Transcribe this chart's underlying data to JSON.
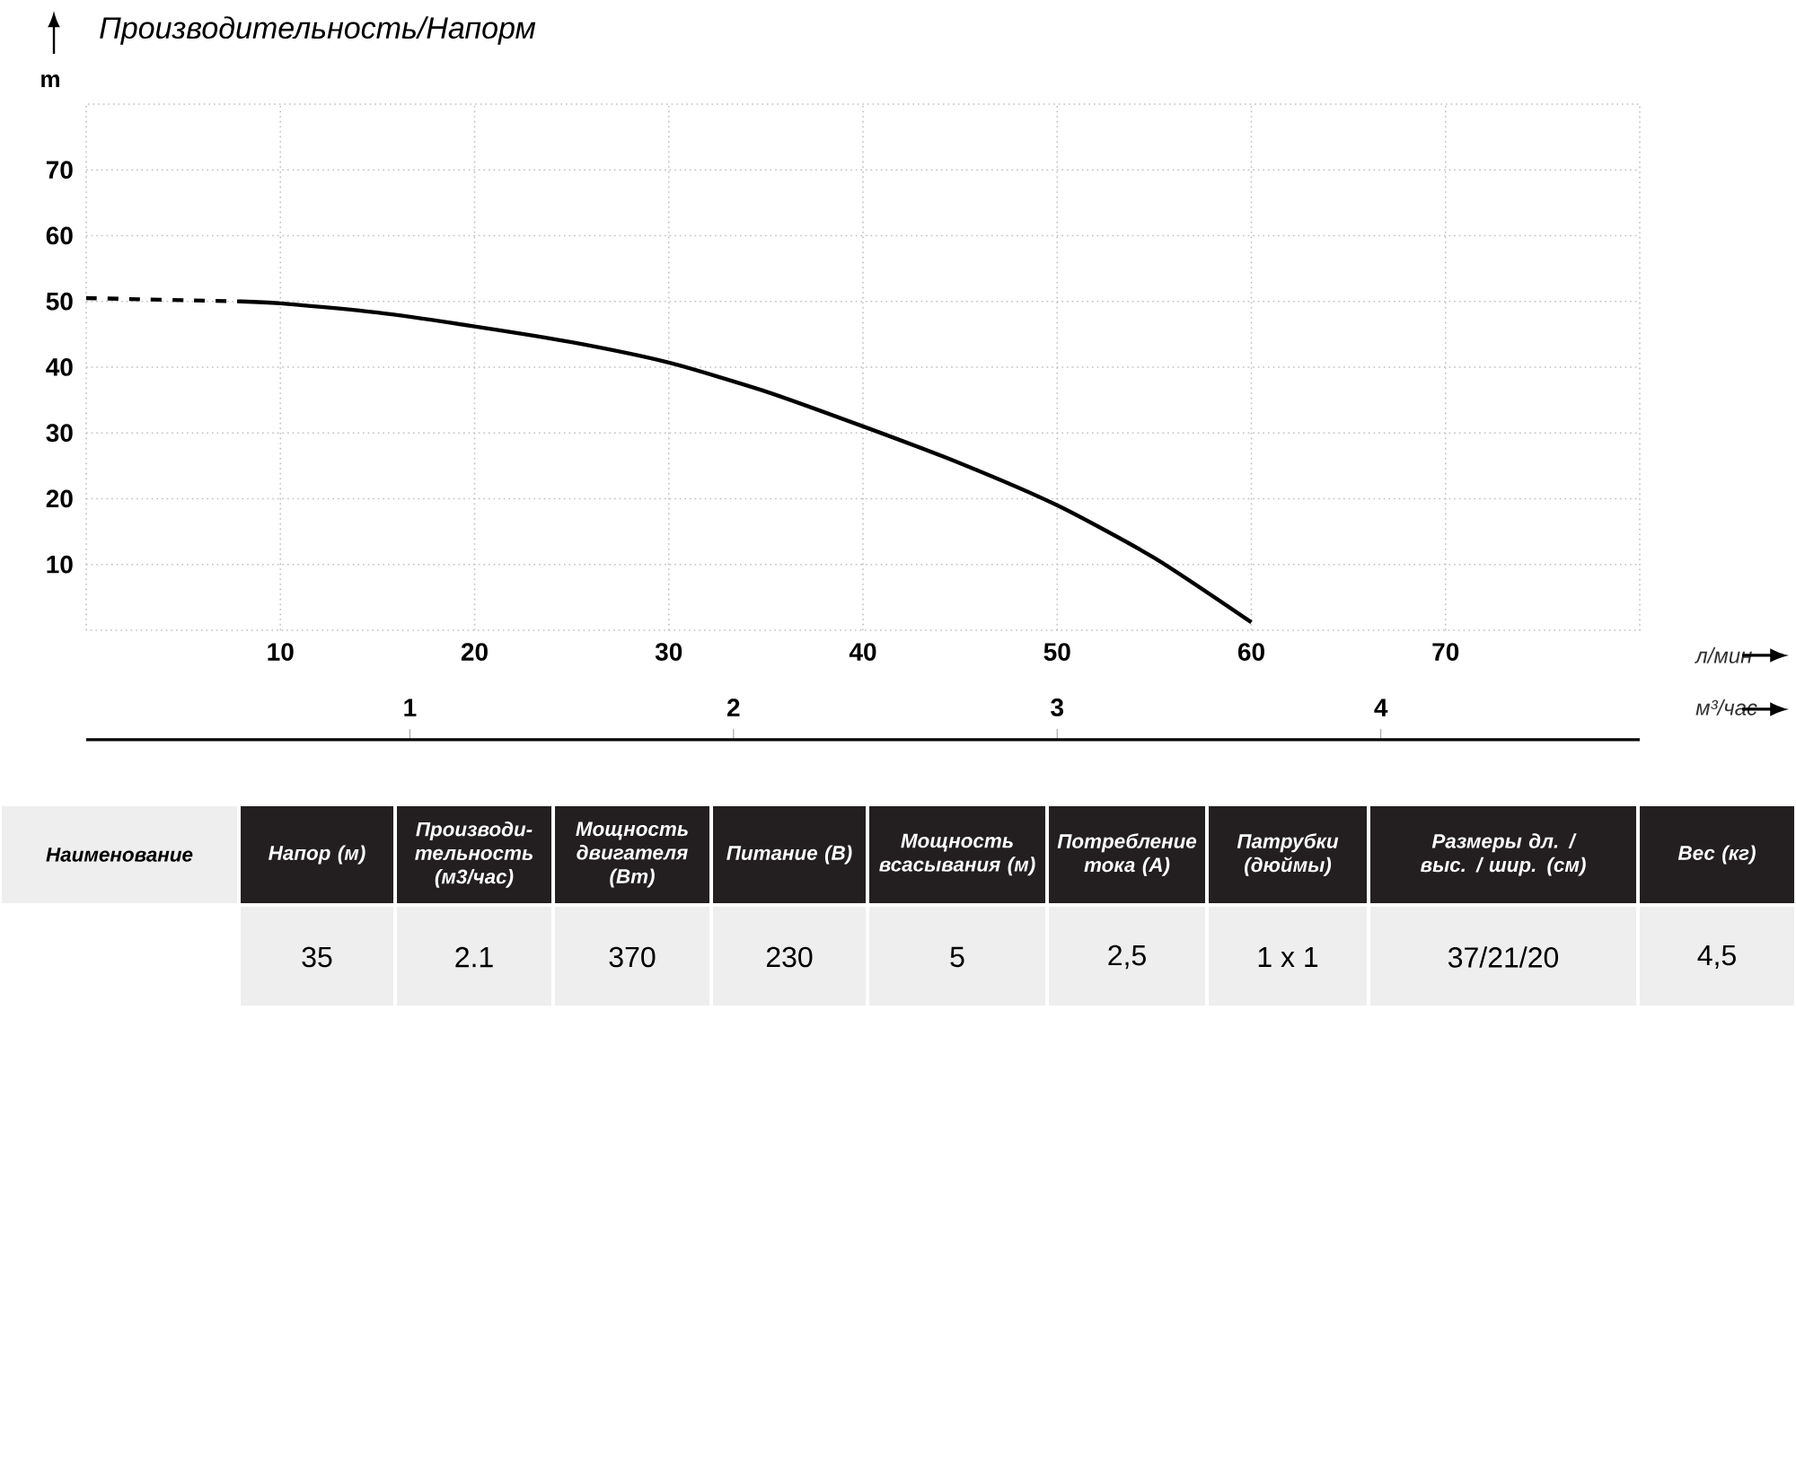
{
  "chart_data": {
    "type": "line",
    "title": "Производительность/Напорм",
    "xlabel": "л/мин",
    "ylabel": "m",
    "x2label": "м³/час",
    "xlim": [
      0,
      80
    ],
    "xticks": [
      10,
      20,
      30,
      40,
      50,
      60,
      70
    ],
    "ylim": [
      0,
      80
    ],
    "yticks": [
      10,
      20,
      30,
      40,
      50,
      60,
      70
    ],
    "x2lim": [
      0,
      4.8
    ],
    "x2ticks": [
      1,
      2,
      3,
      4
    ],
    "grid": true,
    "series": [
      {
        "color": "#000000",
        "line_style": "dashed",
        "x": [
          0,
          8
        ],
        "values": [
          50.5,
          50
        ]
      },
      {
        "color": "#000000",
        "line_style": "solid",
        "x": [
          8,
          10,
          15,
          20,
          25,
          30,
          35,
          40,
          45,
          50,
          55,
          60
        ],
        "values": [
          50,
          49.7,
          48.3,
          46.2,
          43.8,
          40.7,
          36.3,
          31,
          25.4,
          19,
          11,
          1.2
        ]
      }
    ],
    "annotations": [
      "Наименование",
      "Напор (м)",
      "Производи-тельность (м3/час)",
      "Мощность двигателя (Вт)",
      "Питание (В)",
      "Мощность всасывания (м)",
      "Потребление тока (А)",
      "Патрубки (дюймы)",
      "Размеры дл. / выс. / шир. (см)",
      "Вес (кг)",
      "35",
      "2.1",
      "370",
      "230",
      "5",
      "2,5",
      "1 x 1",
      "37/21/20",
      "4,5"
    ]
  }
}
